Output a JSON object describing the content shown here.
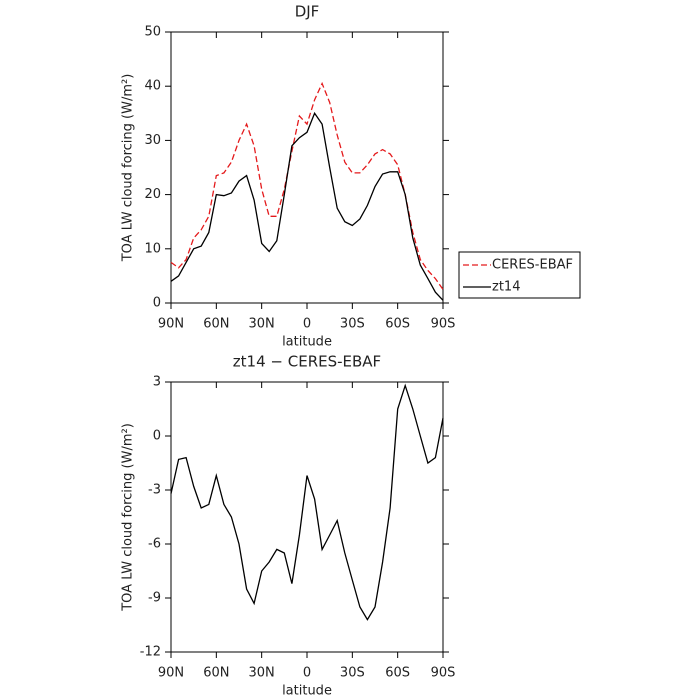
{
  "chart_data": [
    {
      "type": "line",
      "title": "DJF",
      "xlabel": "latitude",
      "ylabel": "TOA LW cloud forcing (W/m²)",
      "x": [
        90,
        85,
        80,
        75,
        70,
        65,
        60,
        55,
        50,
        45,
        40,
        35,
        30,
        25,
        20,
        15,
        10,
        5,
        0,
        -5,
        -10,
        -15,
        -20,
        -25,
        -30,
        -35,
        -40,
        -45,
        -50,
        -55,
        -60,
        -65,
        -70,
        -75,
        -80,
        -85,
        -90
      ],
      "series": [
        {
          "name": "CERES-EBAF",
          "color": "#e41a1c",
          "linestyle": "dashed",
          "values": [
            7.5,
            6.5,
            8,
            12,
            13.5,
            16,
            23.5,
            24,
            26,
            30,
            33,
            29,
            21,
            16,
            16,
            21,
            28,
            34.5,
            33,
            37.5,
            40.5,
            37,
            31,
            26,
            24,
            24,
            25.5,
            27.5,
            28.3,
            27.5,
            25.5,
            20,
            13,
            8,
            6,
            4.5,
            2.5
          ]
        },
        {
          "name": "zt14",
          "color": "#000000",
          "linestyle": "solid",
          "values": [
            4,
            5,
            7.5,
            10,
            10.5,
            13,
            20,
            19.8,
            20.3,
            22.5,
            23.5,
            19,
            11,
            9.5,
            11.5,
            20,
            29,
            30.5,
            31.5,
            35,
            33,
            25,
            17.5,
            15,
            14.3,
            15.5,
            18,
            21.5,
            23.8,
            24.2,
            24.2,
            20,
            12,
            7,
            4.5,
            2,
            0.5
          ]
        }
      ],
      "xlim": [
        90,
        -90
      ],
      "xticks": [
        {
          "value": 90,
          "label": "90N"
        },
        {
          "value": 60,
          "label": "60N"
        },
        {
          "value": 30,
          "label": "30N"
        },
        0,
        {
          "value": -30,
          "label": "30S"
        },
        {
          "value": -60,
          "label": "60S"
        },
        {
          "value": -90,
          "label": "90S"
        }
      ],
      "ylim": [
        0,
        50
      ],
      "yticks": [
        0,
        10,
        20,
        30,
        40,
        50
      ],
      "legend": "outside-right"
    },
    {
      "type": "line",
      "title": "zt14 − CERES-EBAF",
      "xlabel": "latitude",
      "ylabel": "TOA LW cloud forcing (W/m²)",
      "x": [
        90,
        85,
        80,
        75,
        70,
        65,
        60,
        55,
        50,
        45,
        40,
        35,
        30,
        25,
        20,
        15,
        10,
        5,
        0,
        -5,
        -10,
        -15,
        -20,
        -25,
        -30,
        -35,
        -40,
        -45,
        -50,
        -55,
        -60,
        -65,
        -70,
        -75,
        -80,
        -85,
        -90
      ],
      "series": [
        {
          "color": "#000000",
          "linestyle": "solid",
          "values": [
            -3.2,
            -1.3,
            -1.2,
            -2.8,
            -4,
            -3.8,
            -2.2,
            -3.8,
            -4.5,
            -6,
            -8.5,
            -9.3,
            -7.5,
            -7,
            -6.3,
            -6.5,
            -8.2,
            -5.5,
            -2.2,
            -3.5,
            -6.3,
            -5.5,
            -4.7,
            -6.5,
            -8,
            -9.5,
            -10.2,
            -9.5,
            -7,
            -4,
            1.5,
            2.8,
            1.5,
            0,
            -1.5,
            -1.2,
            1
          ]
        }
      ],
      "xlim": [
        90,
        -90
      ],
      "xticks": [
        {
          "value": 90,
          "label": "90N"
        },
        {
          "value": 60,
          "label": "60N"
        },
        {
          "value": 30,
          "label": "30N"
        },
        0,
        {
          "value": -30,
          "label": "30S"
        },
        {
          "value": -60,
          "label": "60S"
        },
        {
          "value": -90,
          "label": "90S"
        }
      ],
      "ylim": [
        -12,
        3
      ],
      "yticks": [
        -12,
        -9,
        -6,
        -3,
        0,
        3
      ]
    }
  ]
}
